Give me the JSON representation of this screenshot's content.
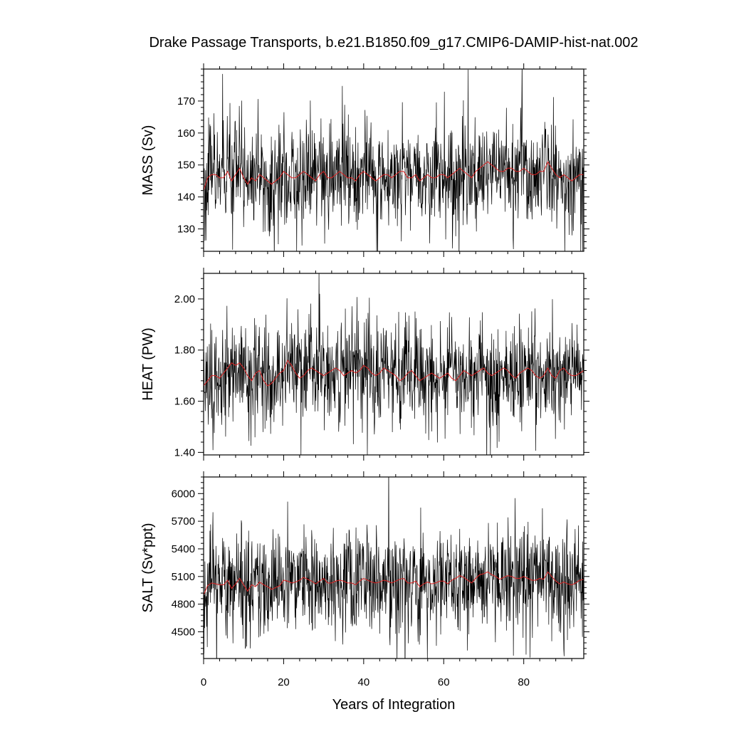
{
  "figure": {
    "title": "Drake Passage Transports, b.e21.B1850.f09_g17.CMIP6-DAMIP-hist-nat.002",
    "xlabel": "Years of Integration",
    "x_ticks": [
      "0",
      "20",
      "40",
      "60",
      "80"
    ],
    "colors": {
      "raw_series": "#000000",
      "smoothed_series": "#dd2222",
      "frame": "#000000"
    }
  },
  "chart_data": [
    {
      "type": "line",
      "ylabel": "MASS (Sv)",
      "xlim": [
        0,
        95
      ],
      "ylim": [
        123,
        180
      ],
      "y_ticks": [
        130,
        140,
        150,
        160,
        170
      ],
      "y_tick_labels": [
        "130",
        "140",
        "150",
        "160",
        "170"
      ],
      "mean": 146,
      "raw_amplitude": 8,
      "smoothed_values": [
        142,
        146,
        147,
        147,
        146,
        146,
        148,
        145,
        147,
        149,
        146,
        144,
        146,
        145,
        147,
        146,
        145,
        144,
        145,
        146,
        148,
        147,
        146,
        146,
        147,
        148,
        147,
        146,
        145,
        147,
        148,
        146,
        146,
        147,
        148,
        147,
        146,
        146,
        145,
        147,
        148,
        147,
        146,
        145,
        146,
        147,
        147,
        146,
        147,
        148,
        148,
        146,
        146,
        147,
        145,
        146,
        147,
        146,
        146,
        147,
        147,
        146,
        147,
        148,
        149,
        148,
        147,
        146,
        148,
        149,
        150,
        151,
        150,
        149,
        148,
        148,
        149,
        149,
        148,
        148,
        149,
        148,
        147,
        147,
        148,
        148,
        151,
        149,
        147,
        146,
        147,
        146,
        145,
        146,
        147,
        147
      ]
    },
    {
      "type": "line",
      "ylabel": "HEAT (PW)",
      "xlim": [
        0,
        95
      ],
      "ylim": [
        1.39,
        2.1
      ],
      "y_ticks": [
        1.4,
        1.6,
        1.8,
        2.0
      ],
      "y_tick_labels": [
        "1.40",
        "1.60",
        "1.80",
        "2.00"
      ],
      "mean": 1.7,
      "raw_amplitude": 0.1,
      "smoothed_values": [
        1.66,
        1.68,
        1.7,
        1.7,
        1.69,
        1.71,
        1.73,
        1.75,
        1.74,
        1.75,
        1.73,
        1.7,
        1.68,
        1.71,
        1.72,
        1.68,
        1.66,
        1.67,
        1.69,
        1.71,
        1.72,
        1.76,
        1.74,
        1.71,
        1.69,
        1.7,
        1.72,
        1.73,
        1.72,
        1.71,
        1.7,
        1.71,
        1.72,
        1.73,
        1.72,
        1.7,
        1.71,
        1.72,
        1.71,
        1.72,
        1.74,
        1.73,
        1.71,
        1.7,
        1.71,
        1.73,
        1.72,
        1.71,
        1.7,
        1.68,
        1.69,
        1.71,
        1.72,
        1.7,
        1.68,
        1.69,
        1.7,
        1.71,
        1.7,
        1.69,
        1.7,
        1.71,
        1.69,
        1.68,
        1.7,
        1.72,
        1.71,
        1.7,
        1.71,
        1.72,
        1.73,
        1.71,
        1.7,
        1.71,
        1.72,
        1.73,
        1.72,
        1.7,
        1.69,
        1.71,
        1.72,
        1.73,
        1.72,
        1.7,
        1.69,
        1.7,
        1.73,
        1.7,
        1.69,
        1.72,
        1.73,
        1.71,
        1.7,
        1.7,
        1.71,
        1.72
      ]
    },
    {
      "type": "line",
      "ylabel": "SALT (Sv*ppt)",
      "xlim": [
        0,
        95
      ],
      "ylim": [
        4210,
        6180
      ],
      "y_ticks": [
        4500,
        4800,
        5100,
        5400,
        5700,
        6000
      ],
      "y_tick_labels": [
        "4500",
        "4800",
        "5100",
        "5400",
        "5700",
        "6000"
      ],
      "mean": 5030,
      "raw_amplitude": 280,
      "smoothed_values": [
        4900,
        5000,
        5030,
        5020,
        5010,
        5010,
        5060,
        4970,
        5020,
        5080,
        5010,
        4940,
        5010,
        4990,
        5040,
        5010,
        4990,
        4960,
        4980,
        5000,
        5060,
        5050,
        5030,
        5040,
        5060,
        5090,
        5070,
        5050,
        5020,
        5050,
        5080,
        5030,
        5030,
        5050,
        5060,
        5050,
        5030,
        5030,
        5010,
        5050,
        5080,
        5060,
        5040,
        5030,
        5040,
        5060,
        5050,
        5030,
        5050,
        5070,
        5080,
        5030,
        5030,
        5050,
        4990,
        5020,
        5040,
        5020,
        5030,
        5050,
        5050,
        5020,
        5060,
        5080,
        5110,
        5090,
        5060,
        5030,
        5080,
        5120,
        5130,
        5150,
        5120,
        5100,
        5070,
        5090,
        5110,
        5100,
        5080,
        5080,
        5100,
        5080,
        5060,
        5060,
        5080,
        5070,
        5150,
        5100,
        5050,
        5020,
        5040,
        5020,
        5010,
        5030,
        5060,
        5070
      ]
    }
  ]
}
